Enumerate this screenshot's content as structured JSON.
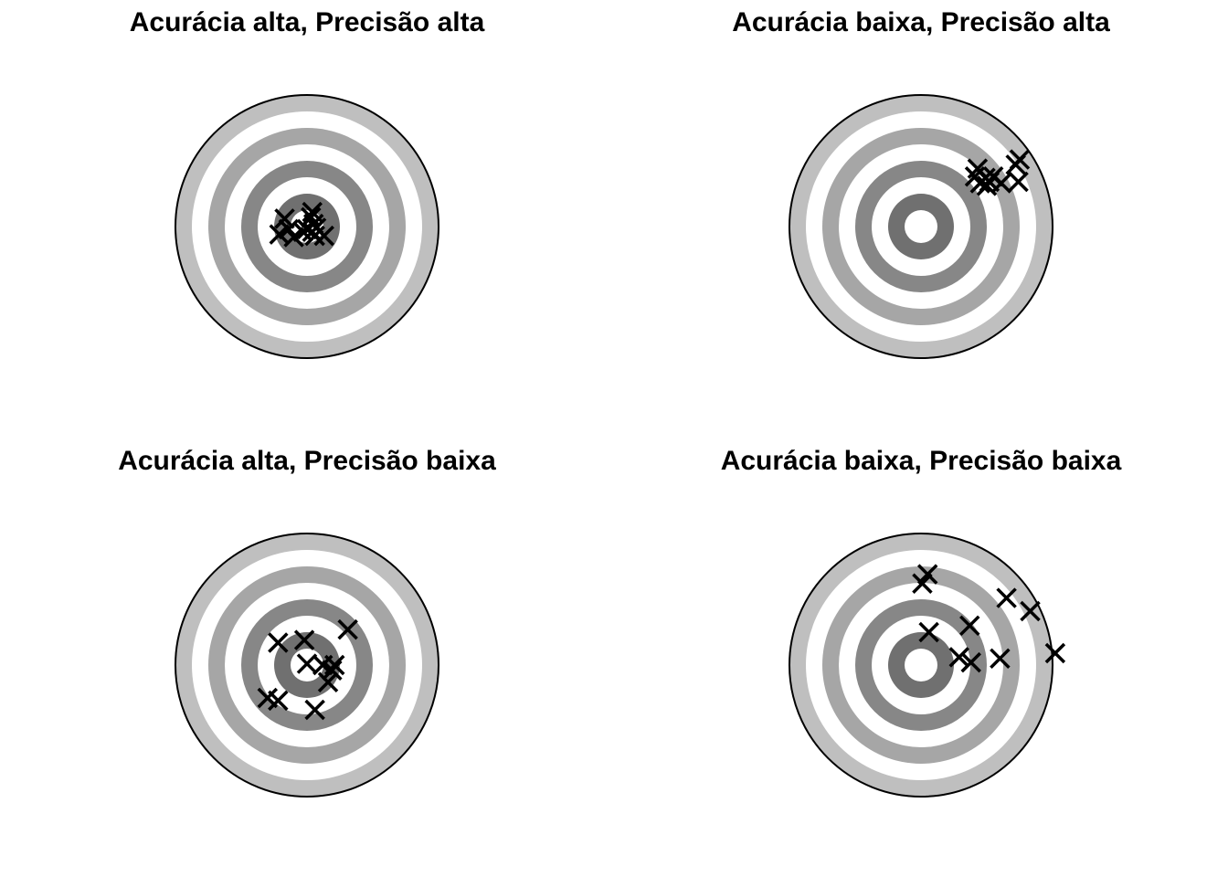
{
  "colors": {
    "outer_ring": "#bfbfbf",
    "middle_ring": "#a6a6a6",
    "inner_ring": "#878787",
    "bullseye_ring": "#707070",
    "gap": "#ffffff",
    "outline": "#000000",
    "marker": "#000000"
  },
  "panels": [
    {
      "title": "Acurácia alta, Precisão alta",
      "shots": [
        [
          -0.17,
          0.06
        ],
        [
          -0.21,
          -0.06
        ],
        [
          -0.14,
          -0.02
        ],
        [
          -0.1,
          -0.08
        ],
        [
          -0.03,
          -0.04
        ],
        [
          0.03,
          0.07
        ],
        [
          0.04,
          0.11
        ],
        [
          0.05,
          0.02
        ],
        [
          0.04,
          -0.04
        ],
        [
          0.07,
          -0.01
        ],
        [
          0.06,
          -0.07
        ],
        [
          0.13,
          -0.07
        ],
        [
          0.0,
          -0.02
        ]
      ]
    },
    {
      "title": "Acurácia baixa, Precisão alta",
      "shots": [
        [
          0.43,
          0.44
        ],
        [
          0.41,
          0.38
        ],
        [
          0.45,
          0.33
        ],
        [
          0.49,
          0.37
        ],
        [
          0.52,
          0.34
        ],
        [
          0.55,
          0.38
        ],
        [
          0.61,
          0.33
        ],
        [
          0.72,
          0.47
        ],
        [
          0.75,
          0.51
        ],
        [
          0.74,
          0.34
        ],
        [
          0.5,
          0.31
        ]
      ]
    },
    {
      "title": "Acurácia alta, Precisão baixa",
      "shots": [
        [
          -0.22,
          0.17
        ],
        [
          -0.02,
          0.19
        ],
        [
          0.31,
          0.27
        ],
        [
          0.0,
          0.01
        ],
        [
          0.12,
          0.0
        ],
        [
          0.21,
          0.0
        ],
        [
          0.19,
          -0.04
        ],
        [
          0.16,
          -0.13
        ],
        [
          -0.3,
          -0.25
        ],
        [
          -0.22,
          -0.27
        ],
        [
          0.06,
          -0.34
        ]
      ]
    },
    {
      "title": "Acurácia baixa, Precisão baixa",
      "shots": [
        [
          0.05,
          0.69
        ],
        [
          0.01,
          0.62
        ],
        [
          0.65,
          0.51
        ],
        [
          0.83,
          0.41
        ],
        [
          0.37,
          0.3
        ],
        [
          0.06,
          0.25
        ],
        [
          0.29,
          0.06
        ],
        [
          0.38,
          0.02
        ],
        [
          0.6,
          0.05
        ],
        [
          1.02,
          0.09
        ]
      ]
    }
  ]
}
